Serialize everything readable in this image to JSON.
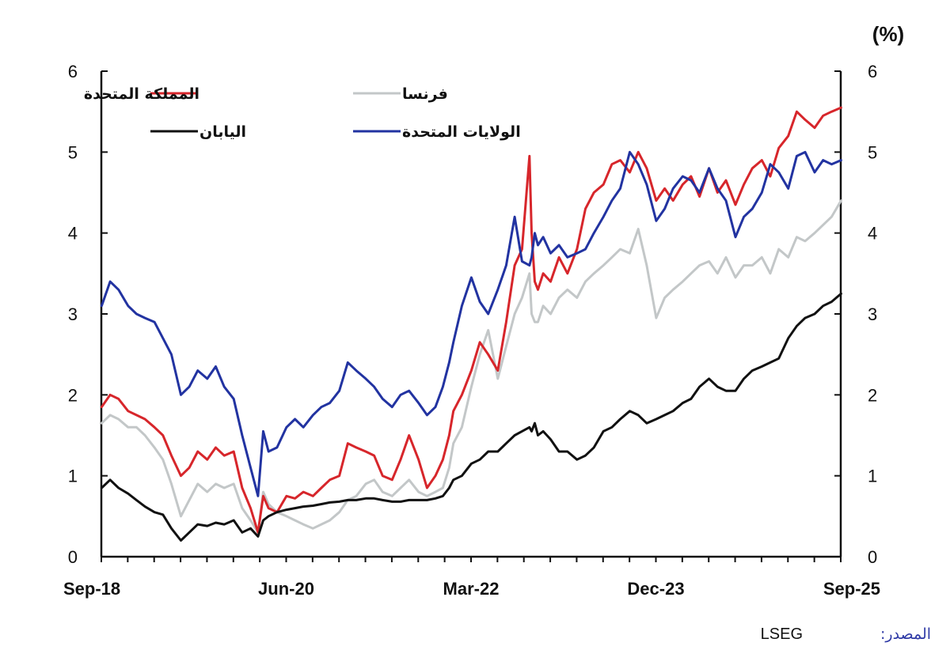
{
  "chart_data": {
    "type": "line",
    "unit_label": "(%)",
    "ylim": [
      0,
      6
    ],
    "y_ticks": [
      0,
      1,
      2,
      3,
      4,
      5,
      6
    ],
    "x_ticks": [
      "Sep-18",
      "Jun-20",
      "Mar-22",
      "Dec-23",
      "Sep-25"
    ],
    "x_tick_positions": [
      2018.667,
      2020.417,
      2022.167,
      2023.917,
      2025.667
    ],
    "x_range": [
      2018.667,
      2025.667
    ],
    "legend": [
      {
        "key": "uk",
        "label": "المملكة المتحدة"
      },
      {
        "key": "fr",
        "label": "فرنسا"
      },
      {
        "key": "jp",
        "label": "اليابان"
      },
      {
        "key": "us",
        "label": "الولايات المتحدة"
      }
    ],
    "series": [
      {
        "key": "uk",
        "name": "المملكة المتحدة",
        "color": "#d7262b",
        "x": [
          2018.67,
          2018.75,
          2018.83,
          2018.92,
          2019.0,
          2019.08,
          2019.17,
          2019.25,
          2019.33,
          2019.42,
          2019.5,
          2019.58,
          2019.67,
          2019.75,
          2019.83,
          2019.92,
          2020.0,
          2020.08,
          2020.15,
          2020.2,
          2020.25,
          2020.33,
          2020.42,
          2020.5,
          2020.58,
          2020.67,
          2020.75,
          2020.83,
          2020.92,
          2021.0,
          2021.08,
          2021.17,
          2021.25,
          2021.33,
          2021.42,
          2021.5,
          2021.58,
          2021.67,
          2021.75,
          2021.83,
          2021.9,
          2021.96,
          2022.0,
          2022.08,
          2022.17,
          2022.25,
          2022.33,
          2022.42,
          2022.5,
          2022.58,
          2022.65,
          2022.72,
          2022.74,
          2022.77,
          2022.8,
          2022.85,
          2022.92,
          2023.0,
          2023.08,
          2023.17,
          2023.25,
          2023.33,
          2023.42,
          2023.5,
          2023.58,
          2023.67,
          2023.75,
          2023.83,
          2023.92,
          2024.0,
          2024.08,
          2024.17,
          2024.25,
          2024.33,
          2024.42,
          2024.5,
          2024.58,
          2024.67,
          2024.75,
          2024.83,
          2024.92,
          2025.0,
          2025.08,
          2025.17,
          2025.25,
          2025.33,
          2025.42,
          2025.5,
          2025.58,
          2025.67
        ],
        "values": [
          1.85,
          2.0,
          1.95,
          1.8,
          1.75,
          1.7,
          1.6,
          1.5,
          1.25,
          1.0,
          1.1,
          1.3,
          1.2,
          1.35,
          1.25,
          1.3,
          0.85,
          0.6,
          0.3,
          0.75,
          0.6,
          0.55,
          0.75,
          0.72,
          0.8,
          0.75,
          0.85,
          0.95,
          1.0,
          1.4,
          1.35,
          1.3,
          1.25,
          1.0,
          0.95,
          1.2,
          1.5,
          1.2,
          0.85,
          1.0,
          1.2,
          1.5,
          1.8,
          2.0,
          2.3,
          2.65,
          2.5,
          2.3,
          2.9,
          3.6,
          3.8,
          4.95,
          4.0,
          3.4,
          3.3,
          3.5,
          3.4,
          3.7,
          3.5,
          3.8,
          4.3,
          4.5,
          4.6,
          4.85,
          4.9,
          4.75,
          5.0,
          4.8,
          4.4,
          4.55,
          4.4,
          4.6,
          4.7,
          4.45,
          4.8,
          4.5,
          4.65,
          4.35,
          4.6,
          4.8,
          4.9,
          4.7,
          5.05,
          5.2,
          5.5,
          5.4,
          5.3,
          5.45,
          5.5,
          5.55
        ]
      },
      {
        "key": "fr",
        "name": "فرنسا",
        "color": "#c3c7c8",
        "x": [
          2018.67,
          2018.75,
          2018.83,
          2018.92,
          2019.0,
          2019.08,
          2019.17,
          2019.25,
          2019.33,
          2019.42,
          2019.5,
          2019.58,
          2019.67,
          2019.75,
          2019.83,
          2019.92,
          2020.0,
          2020.08,
          2020.15,
          2020.2,
          2020.25,
          2020.33,
          2020.42,
          2020.5,
          2020.58,
          2020.67,
          2020.75,
          2020.83,
          2020.92,
          2021.0,
          2021.08,
          2021.17,
          2021.25,
          2021.33,
          2021.42,
          2021.5,
          2021.58,
          2021.67,
          2021.75,
          2021.83,
          2021.9,
          2021.96,
          2022.0,
          2022.08,
          2022.17,
          2022.25,
          2022.33,
          2022.42,
          2022.5,
          2022.58,
          2022.65,
          2022.72,
          2022.74,
          2022.77,
          2022.8,
          2022.85,
          2022.92,
          2023.0,
          2023.08,
          2023.17,
          2023.25,
          2023.33,
          2023.42,
          2023.5,
          2023.58,
          2023.67,
          2023.75,
          2023.83,
          2023.92,
          2024.0,
          2024.08,
          2024.17,
          2024.25,
          2024.33,
          2024.42,
          2024.5,
          2024.58,
          2024.67,
          2024.75,
          2024.83,
          2024.92,
          2025.0,
          2025.08,
          2025.17,
          2025.25,
          2025.33,
          2025.42,
          2025.5,
          2025.58,
          2025.67
        ],
        "values": [
          1.65,
          1.75,
          1.7,
          1.6,
          1.6,
          1.5,
          1.35,
          1.2,
          0.9,
          0.5,
          0.7,
          0.9,
          0.8,
          0.9,
          0.85,
          0.9,
          0.6,
          0.45,
          0.3,
          0.8,
          0.65,
          0.55,
          0.5,
          0.45,
          0.4,
          0.35,
          0.4,
          0.45,
          0.55,
          0.7,
          0.75,
          0.9,
          0.95,
          0.8,
          0.75,
          0.85,
          0.95,
          0.8,
          0.75,
          0.8,
          0.85,
          1.1,
          1.4,
          1.6,
          2.1,
          2.5,
          2.8,
          2.2,
          2.6,
          3.0,
          3.2,
          3.5,
          3.0,
          2.9,
          2.9,
          3.1,
          3.0,
          3.2,
          3.3,
          3.2,
          3.4,
          3.5,
          3.6,
          3.7,
          3.8,
          3.75,
          4.05,
          3.6,
          2.95,
          3.2,
          3.3,
          3.4,
          3.5,
          3.6,
          3.65,
          3.5,
          3.7,
          3.45,
          3.6,
          3.6,
          3.7,
          3.5,
          3.8,
          3.7,
          3.95,
          3.9,
          4.0,
          4.1,
          4.2,
          4.4
        ]
      },
      {
        "key": "jp",
        "name": "اليابان",
        "color": "#111111",
        "x": [
          2018.67,
          2018.75,
          2018.83,
          2018.92,
          2019.0,
          2019.08,
          2019.17,
          2019.25,
          2019.33,
          2019.42,
          2019.5,
          2019.58,
          2019.67,
          2019.75,
          2019.83,
          2019.92,
          2020.0,
          2020.08,
          2020.15,
          2020.2,
          2020.25,
          2020.33,
          2020.42,
          2020.5,
          2020.58,
          2020.67,
          2020.75,
          2020.83,
          2020.92,
          2021.0,
          2021.08,
          2021.17,
          2021.25,
          2021.33,
          2021.42,
          2021.5,
          2021.58,
          2021.67,
          2021.75,
          2021.83,
          2021.9,
          2021.96,
          2022.0,
          2022.08,
          2022.17,
          2022.25,
          2022.33,
          2022.42,
          2022.5,
          2022.58,
          2022.65,
          2022.72,
          2022.74,
          2022.77,
          2022.8,
          2022.85,
          2022.92,
          2023.0,
          2023.08,
          2023.17,
          2023.25,
          2023.33,
          2023.42,
          2023.5,
          2023.58,
          2023.67,
          2023.75,
          2023.83,
          2023.92,
          2024.0,
          2024.08,
          2024.17,
          2024.25,
          2024.33,
          2024.42,
          2024.5,
          2024.58,
          2024.67,
          2024.75,
          2024.83,
          2024.92,
          2025.0,
          2025.08,
          2025.17,
          2025.25,
          2025.33,
          2025.42,
          2025.5,
          2025.58,
          2025.67
        ],
        "values": [
          0.85,
          0.95,
          0.85,
          0.78,
          0.7,
          0.62,
          0.55,
          0.52,
          0.35,
          0.2,
          0.3,
          0.4,
          0.38,
          0.42,
          0.4,
          0.45,
          0.3,
          0.35,
          0.25,
          0.45,
          0.5,
          0.55,
          0.58,
          0.6,
          0.62,
          0.63,
          0.65,
          0.67,
          0.68,
          0.7,
          0.7,
          0.72,
          0.72,
          0.7,
          0.68,
          0.68,
          0.7,
          0.7,
          0.7,
          0.72,
          0.75,
          0.85,
          0.95,
          1.0,
          1.15,
          1.2,
          1.3,
          1.3,
          1.4,
          1.5,
          1.55,
          1.6,
          1.55,
          1.65,
          1.5,
          1.55,
          1.45,
          1.3,
          1.3,
          1.2,
          1.25,
          1.35,
          1.55,
          1.6,
          1.7,
          1.8,
          1.75,
          1.65,
          1.7,
          1.75,
          1.8,
          1.9,
          1.95,
          2.1,
          2.2,
          2.1,
          2.05,
          2.05,
          2.2,
          2.3,
          2.35,
          2.4,
          2.45,
          2.7,
          2.85,
          2.95,
          3.0,
          3.1,
          3.15,
          3.25
        ]
      },
      {
        "key": "us",
        "name": "الولايات المتحدة",
        "color": "#2233a1",
        "x": [
          2018.67,
          2018.75,
          2018.83,
          2018.92,
          2019.0,
          2019.08,
          2019.17,
          2019.25,
          2019.33,
          2019.42,
          2019.5,
          2019.58,
          2019.67,
          2019.75,
          2019.83,
          2019.92,
          2020.0,
          2020.08,
          2020.15,
          2020.2,
          2020.25,
          2020.33,
          2020.42,
          2020.5,
          2020.58,
          2020.67,
          2020.75,
          2020.83,
          2020.92,
          2021.0,
          2021.08,
          2021.17,
          2021.25,
          2021.33,
          2021.42,
          2021.5,
          2021.58,
          2021.67,
          2021.75,
          2021.83,
          2021.9,
          2021.96,
          2022.0,
          2022.08,
          2022.17,
          2022.25,
          2022.33,
          2022.42,
          2022.5,
          2022.58,
          2022.65,
          2022.72,
          2022.74,
          2022.77,
          2022.8,
          2022.85,
          2022.92,
          2023.0,
          2023.08,
          2023.17,
          2023.25,
          2023.33,
          2023.42,
          2023.5,
          2023.58,
          2023.67,
          2023.75,
          2023.83,
          2023.92,
          2024.0,
          2024.08,
          2024.17,
          2024.25,
          2024.33,
          2024.42,
          2024.5,
          2024.58,
          2024.67,
          2024.75,
          2024.83,
          2024.92,
          2025.0,
          2025.08,
          2025.17,
          2025.25,
          2025.33,
          2025.42,
          2025.5,
          2025.58,
          2025.67
        ],
        "values": [
          3.1,
          3.4,
          3.3,
          3.1,
          3.0,
          2.95,
          2.9,
          2.7,
          2.5,
          2.0,
          2.1,
          2.3,
          2.2,
          2.35,
          2.1,
          1.95,
          1.5,
          1.1,
          0.75,
          1.55,
          1.3,
          1.35,
          1.6,
          1.7,
          1.6,
          1.75,
          1.85,
          1.9,
          2.05,
          2.4,
          2.3,
          2.2,
          2.1,
          1.95,
          1.85,
          2.0,
          2.05,
          1.9,
          1.75,
          1.85,
          2.1,
          2.4,
          2.65,
          3.1,
          3.45,
          3.15,
          3.0,
          3.3,
          3.6,
          4.2,
          3.65,
          3.6,
          3.7,
          4.0,
          3.85,
          3.95,
          3.75,
          3.85,
          3.7,
          3.75,
          3.8,
          4.0,
          4.2,
          4.4,
          4.55,
          5.0,
          4.85,
          4.6,
          4.15,
          4.3,
          4.55,
          4.7,
          4.65,
          4.5,
          4.8,
          4.55,
          4.4,
          3.95,
          4.2,
          4.3,
          4.5,
          4.85,
          4.75,
          4.55,
          4.95,
          5.0,
          4.75,
          4.9,
          4.85,
          4.9
        ]
      }
    ]
  },
  "source": {
    "label": "المصدر:",
    "value": "LSEG"
  }
}
